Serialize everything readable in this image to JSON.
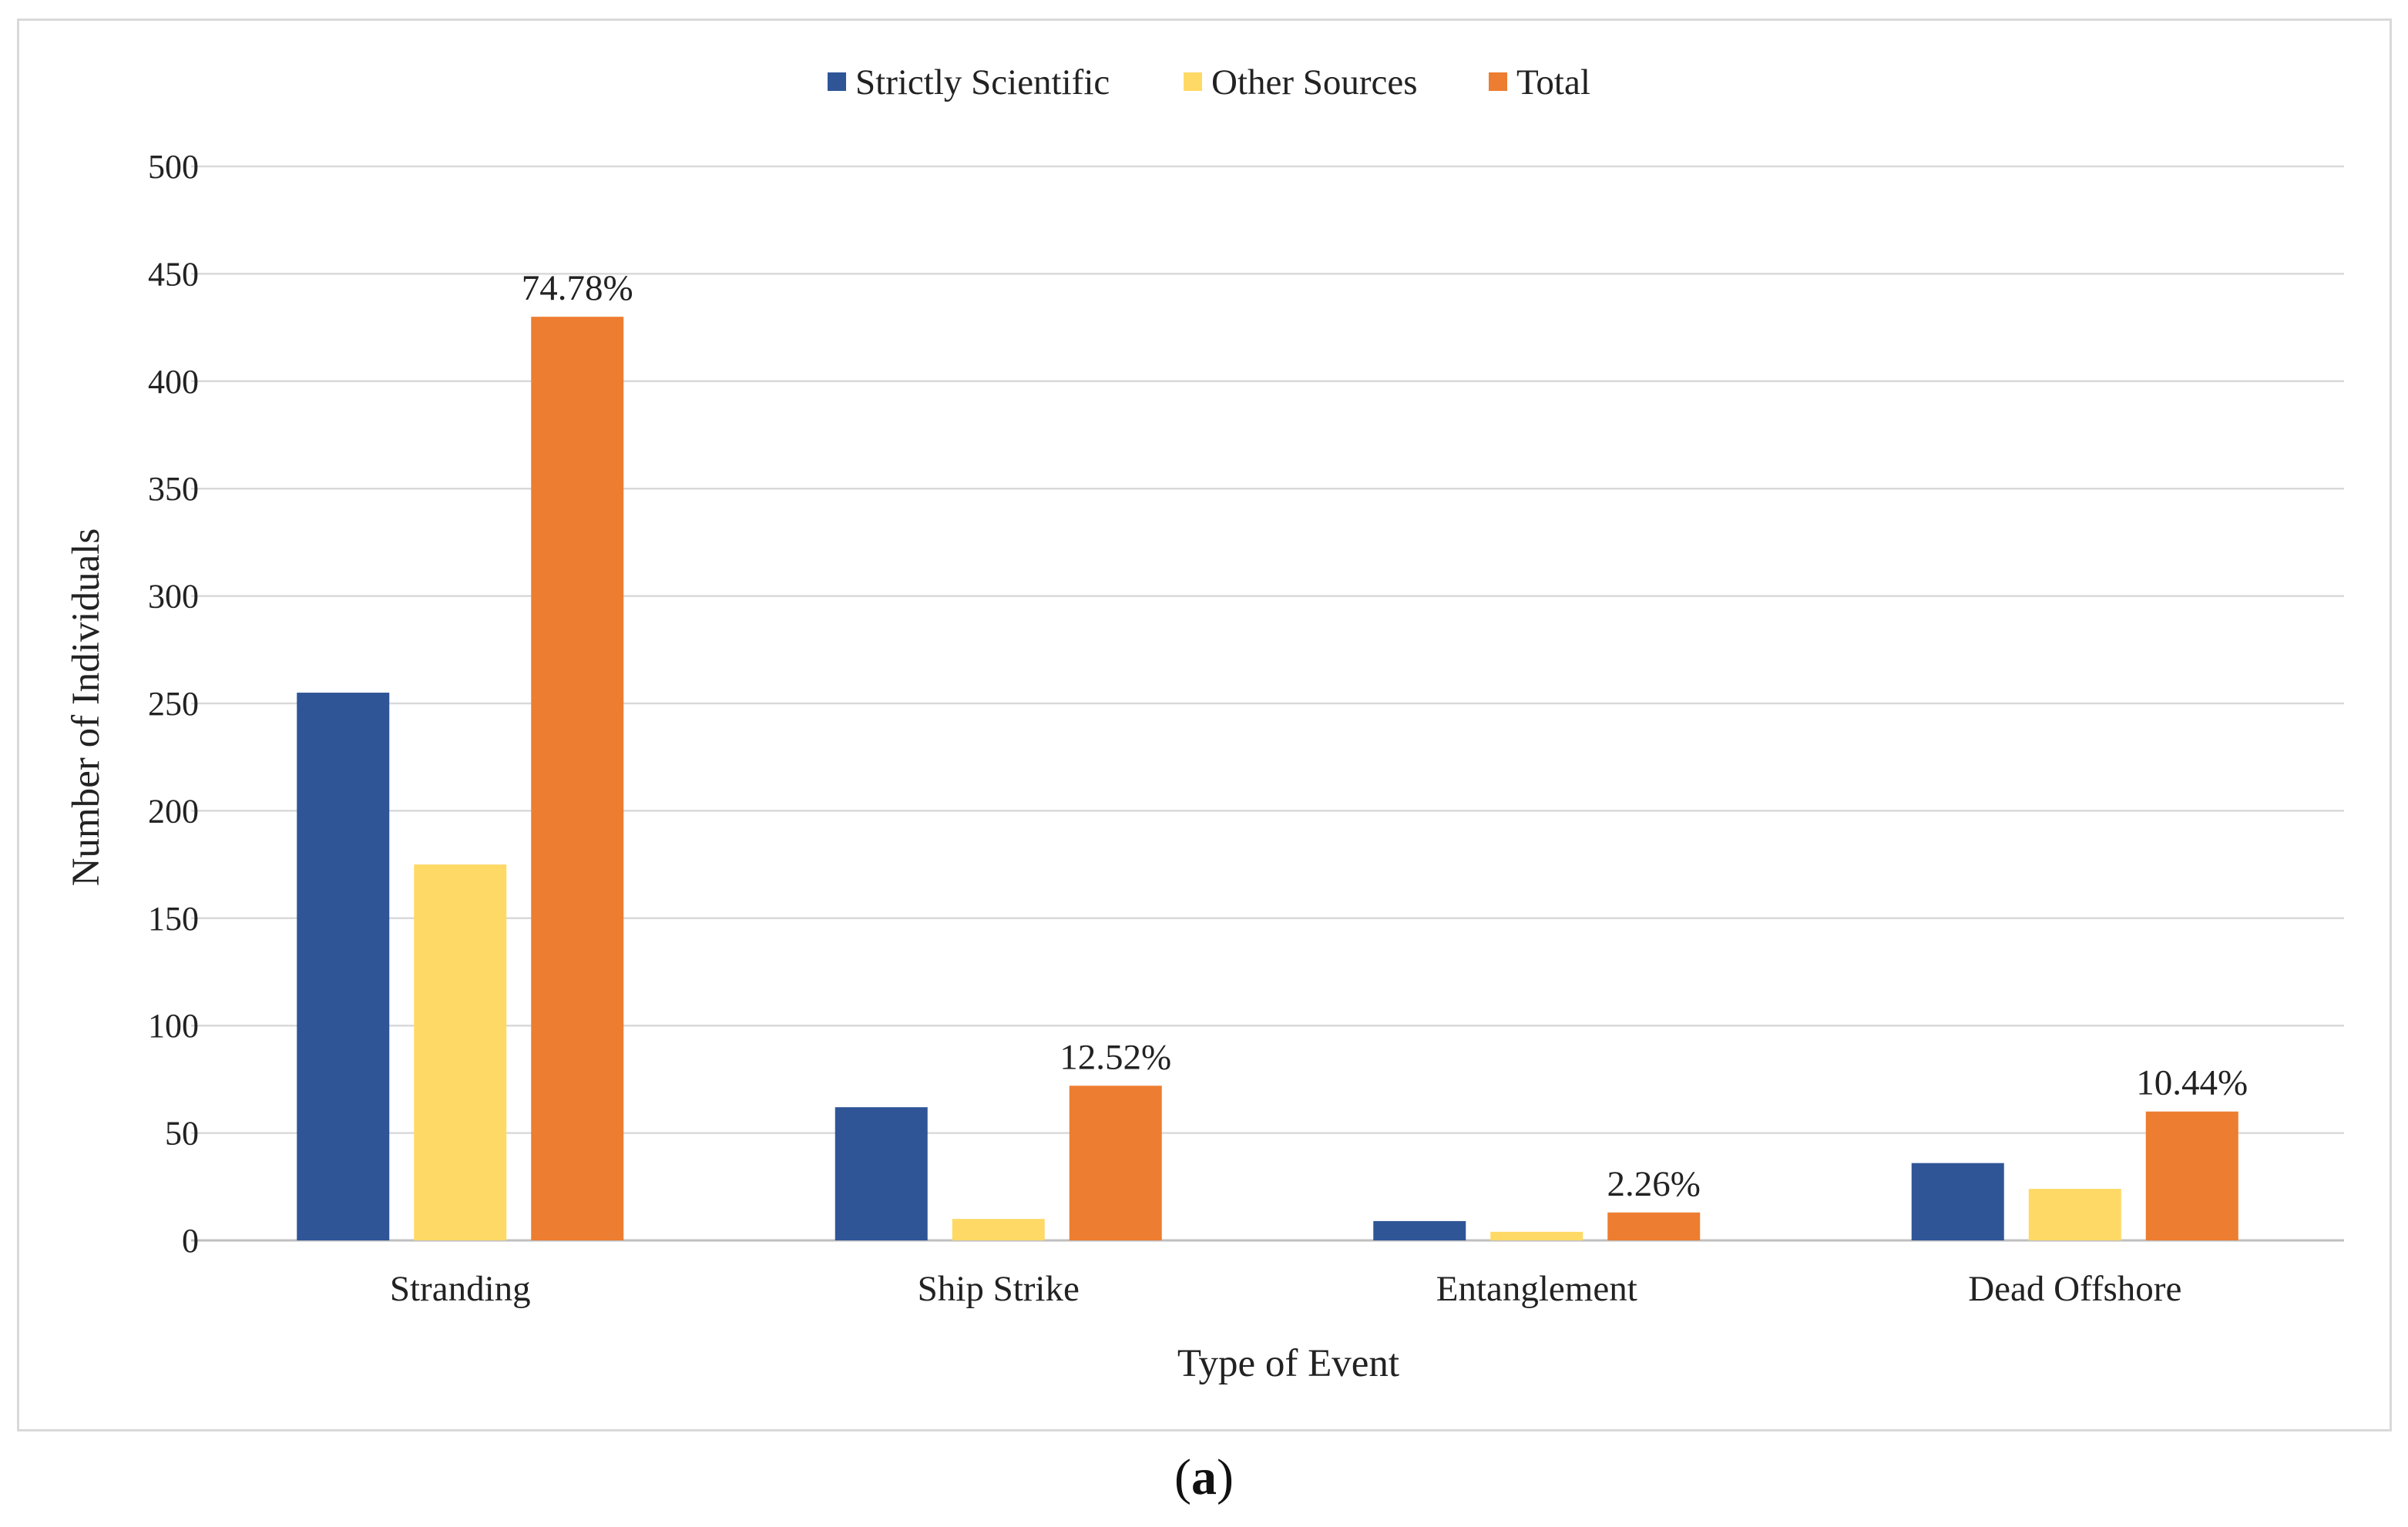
{
  "panel_label": {
    "open": "(",
    "letter": "a",
    "close": ")"
  },
  "chart_data": {
    "type": "bar",
    "title": "",
    "xlabel": "Type of Event",
    "ylabel": "Number of Individuals",
    "ylim": [
      0,
      500
    ],
    "yticks": [
      0,
      50,
      100,
      150,
      200,
      250,
      300,
      350,
      400,
      450,
      500
    ],
    "grid": true,
    "legend_position": "top-center",
    "categories": [
      "Stranding",
      "Ship Strike",
      "Entanglement",
      "Dead Offshore"
    ],
    "series": [
      {
        "name": "Strictly Scientific",
        "color": "#2f5597",
        "values": [
          255,
          62,
          9,
          36
        ]
      },
      {
        "name": "Other Sources",
        "color": "#ffd966",
        "values": [
          175,
          10,
          4,
          24
        ]
      },
      {
        "name": "Total",
        "color": "#ed7d31",
        "values": [
          430,
          72,
          13,
          60
        ]
      }
    ],
    "data_labels": {
      "series": "Total",
      "labels": [
        "74.78%",
        "12.52%",
        "2.26%",
        "10.44%"
      ]
    }
  }
}
